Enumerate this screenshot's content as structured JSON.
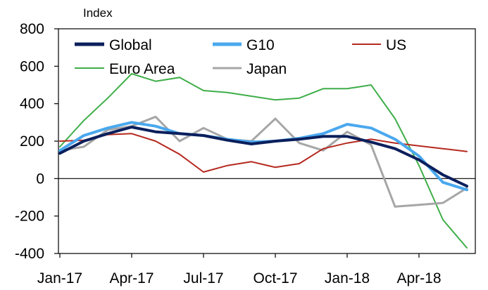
{
  "chart_data": {
    "type": "line",
    "ylabel": "Index",
    "ylim": [
      -400,
      800
    ],
    "yticks": [
      -400,
      -200,
      0,
      200,
      400,
      600,
      800
    ],
    "x_dates": [
      "Jan-17",
      "Feb-17",
      "Mar-17",
      "Apr-17",
      "May-17",
      "Jun-17",
      "Jul-17",
      "Aug-17",
      "Sep-17",
      "Oct-17",
      "Nov-17",
      "Dec-17",
      "Jan-18",
      "Feb-18",
      "Mar-18",
      "Apr-18",
      "May-18",
      "Jun-18"
    ],
    "x_ticks": [
      "Jan-17",
      "Apr-17",
      "Jul-17",
      "Oct-17",
      "Jan-18",
      "Apr-18"
    ],
    "legend_position": "top",
    "series": [
      {
        "name": "Global",
        "color": "#0b1f5c",
        "width": 4,
        "values": [
          135,
          200,
          240,
          275,
          250,
          240,
          230,
          205,
          185,
          200,
          210,
          225,
          225,
          195,
          160,
          100,
          20,
          -40
        ]
      },
      {
        "name": "G10",
        "color": "#4aa8ee",
        "width": 4,
        "values": [
          150,
          230,
          270,
          300,
          280,
          240,
          230,
          210,
          195,
          200,
          215,
          240,
          290,
          270,
          210,
          120,
          -20,
          -60
        ]
      },
      {
        "name": "US",
        "color": "#b5291f",
        "width": 2,
        "values": [
          200,
          205,
          235,
          240,
          200,
          130,
          35,
          70,
          90,
          60,
          80,
          160,
          190,
          210,
          190,
          175,
          160,
          145
        ]
      },
      {
        "name": "Euro Area",
        "color": "#3fae49",
        "width": 2,
        "values": [
          170,
          310,
          430,
          560,
          520,
          540,
          470,
          460,
          440,
          420,
          430,
          480,
          480,
          500,
          320,
          70,
          -220,
          -370
        ]
      },
      {
        "name": "Japan",
        "color": "#a6a6a6",
        "width": 3,
        "values": [
          150,
          170,
          260,
          280,
          330,
          200,
          270,
          210,
          200,
          320,
          190,
          150,
          250,
          180,
          -150,
          -140,
          -130,
          -50
        ]
      }
    ]
  }
}
